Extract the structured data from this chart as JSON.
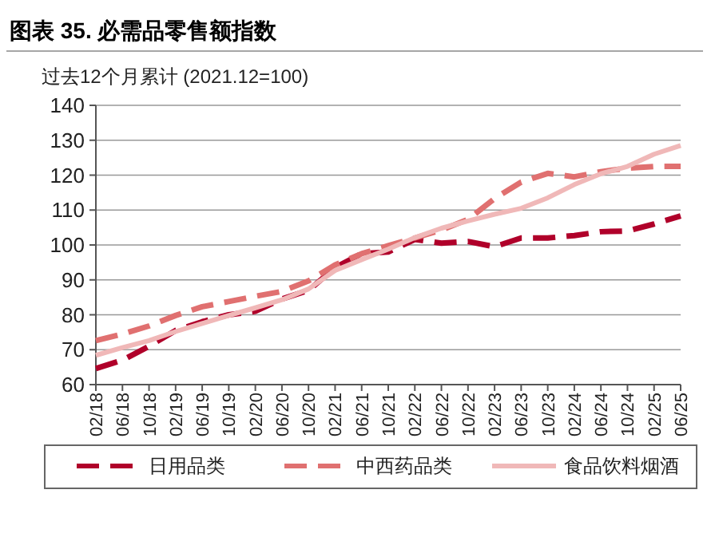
{
  "chart_data": {
    "type": "line",
    "title": "图表 35. 必需品零售额指数",
    "ylabel": "过去12个月累计 (2021.12=100)",
    "categories": [
      "02/18",
      "06/18",
      "10/18",
      "02/19",
      "06/19",
      "10/19",
      "02/20",
      "06/20",
      "10/20",
      "02/21",
      "06/21",
      "10/21",
      "02/22",
      "06/22",
      "10/22",
      "02/23",
      "06/23",
      "10/23",
      "02/24",
      "06/24",
      "10/24",
      "02/25",
      "06/25"
    ],
    "series": [
      {
        "name": "日用品类",
        "color": "#b0002a",
        "line_style": "dashed",
        "values": [
          64.6,
          67,
          71,
          75.5,
          78,
          80,
          81,
          84.5,
          87,
          93.5,
          97.5,
          98,
          101.6,
          100.5,
          101,
          99.5,
          102,
          102,
          102.7,
          103.8,
          104,
          106,
          108.3
        ]
      },
      {
        "name": "中西药品类",
        "color": "#e07070",
        "line_style": "dashed",
        "values": [
          72.6,
          74.5,
          76.8,
          79.8,
          82.3,
          83.8,
          85.3,
          86.7,
          89.7,
          94.3,
          97.5,
          99.8,
          102,
          104.3,
          107.3,
          113.3,
          118,
          120.5,
          119.5,
          121,
          122,
          122.5,
          122.5
        ]
      },
      {
        "name": "食品饮料烟酒",
        "color": "#f0b8b8",
        "line_style": "solid",
        "values": [
          68.4,
          70.6,
          72.6,
          75.2,
          77.5,
          79.8,
          82,
          84.3,
          87.4,
          92.7,
          95.8,
          98.8,
          102.1,
          104.8,
          106.9,
          108.8,
          110.5,
          113.5,
          117.3,
          120.4,
          122.5,
          126,
          128.5
        ]
      }
    ],
    "ylim": [
      60,
      140
    ],
    "yticks": [
      60,
      70,
      80,
      90,
      100,
      110,
      120,
      130,
      140
    ],
    "grid": "y",
    "legend": "bottom"
  }
}
